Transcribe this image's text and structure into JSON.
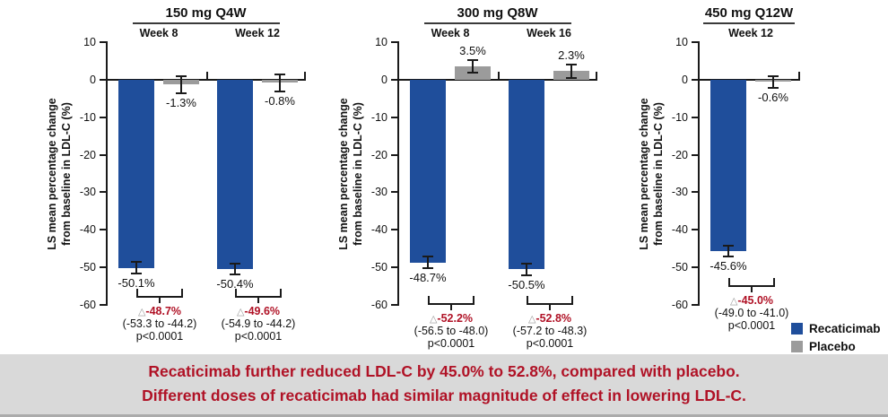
{
  "caption": {
    "line1": "Recaticimab further reduced LDL-C by 45.0% to 52.8%, compared with placebo.",
    "line2": "Different doses of recaticimab had similar magnitude of effect in lowering LDL-C.",
    "color": "#B01226",
    "background": "#D9D9D9"
  },
  "legend": {
    "items": [
      {
        "label": "Recaticimab",
        "color": "#1F4E9B"
      },
      {
        "label": "Placebo",
        "color": "#9B9B9B"
      }
    ]
  },
  "chart_data": {
    "type": "bar",
    "ylabel_line1": "LS mean percentage change",
    "ylabel_line2": "from baseline in LDL-C (%)",
    "ylim": [
      -60,
      10
    ],
    "yticks": [
      10,
      0,
      -10,
      -20,
      -30,
      -40,
      -50,
      -60
    ],
    "series": [
      "Recaticimab",
      "Placebo"
    ],
    "colors": {
      "recaticimab": "#1F4E9B",
      "placebo": "#9B9B9B",
      "delta_red": "#B01226",
      "axis": "#1a1a1a"
    },
    "panels": [
      {
        "title": "150 mg Q4W",
        "groups": [
          {
            "week": "Week 8",
            "recaticimab": {
              "value": -50.1,
              "label": "-50.1%",
              "err": 1.5
            },
            "placebo": {
              "value": -1.3,
              "label": "-1.3%",
              "err": 2.3
            },
            "delta": {
              "symbol": "△",
              "label": "-48.7%",
              "ci": "(-53.3 to -44.2)",
              "p": "p<0.0001"
            }
          },
          {
            "week": "Week 12",
            "recaticimab": {
              "value": -50.4,
              "label": "-50.4%",
              "err": 1.5
            },
            "placebo": {
              "value": -0.8,
              "label": "-0.8%",
              "err": 2.3
            },
            "delta": {
              "symbol": "△",
              "label": "-49.6%",
              "ci": "(-54.9 to -44.2)",
              "p": "p<0.0001"
            }
          }
        ]
      },
      {
        "title": "300 mg Q8W",
        "groups": [
          {
            "week": "Week 8",
            "recaticimab": {
              "value": -48.7,
              "label": "-48.7%",
              "err": 1.5
            },
            "placebo": {
              "value": 3.5,
              "label": "3.5%",
              "err": 1.7
            },
            "delta": {
              "symbol": "△",
              "label": "-52.2%",
              "ci": "(-56.5 to -48.0)",
              "p": "p<0.0001"
            }
          },
          {
            "week": "Week 16",
            "recaticimab": {
              "value": -50.5,
              "label": "-50.5%",
              "err": 1.6
            },
            "placebo": {
              "value": 2.3,
              "label": "2.3%",
              "err": 1.8
            },
            "delta": {
              "symbol": "△",
              "label": "-52.8%",
              "ci": "(-57.2 to -48.3)",
              "p": "p<0.0001"
            }
          }
        ]
      },
      {
        "title": "450 mg Q12W",
        "groups": [
          {
            "week": "Week 12",
            "recaticimab": {
              "value": -45.6,
              "label": "-45.6%",
              "err": 1.4
            },
            "placebo": {
              "value": -0.6,
              "label": "-0.6%",
              "err": 1.6
            },
            "delta": {
              "symbol": "△",
              "label": "-45.0%",
              "ci": "(-49.0 to -41.0)",
              "p": "p<0.0001"
            }
          }
        ]
      }
    ]
  }
}
